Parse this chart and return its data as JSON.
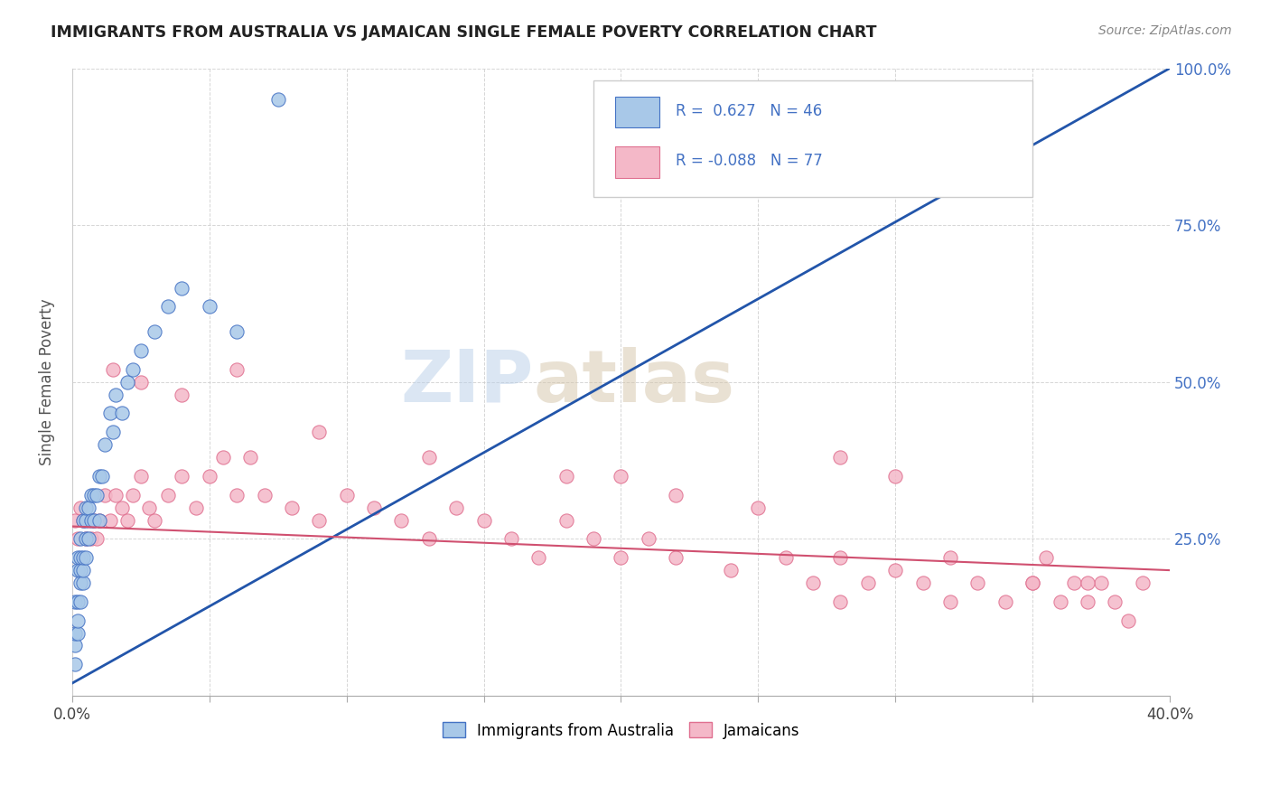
{
  "title": "IMMIGRANTS FROM AUSTRALIA VS JAMAICAN SINGLE FEMALE POVERTY CORRELATION CHART",
  "source": "Source: ZipAtlas.com",
  "ylabel": "Single Female Poverty",
  "xlim": [
    0.0,
    0.4
  ],
  "ylim": [
    0.0,
    1.0
  ],
  "blue_R": 0.627,
  "blue_N": 46,
  "pink_R": -0.088,
  "pink_N": 77,
  "blue_color": "#a8c8e8",
  "pink_color": "#f4b8c8",
  "blue_edge_color": "#4472c4",
  "pink_edge_color": "#e07090",
  "blue_line_color": "#2255aa",
  "pink_line_color": "#d05070",
  "background_color": "#ffffff",
  "grid_color": "#cccccc",
  "legend_label1": "Immigrants from Australia",
  "legend_label2": "Jamaicans",
  "blue_x": [
    0.001,
    0.001,
    0.001,
    0.001,
    0.002,
    0.002,
    0.002,
    0.002,
    0.002,
    0.003,
    0.003,
    0.003,
    0.003,
    0.003,
    0.004,
    0.004,
    0.004,
    0.004,
    0.005,
    0.005,
    0.005,
    0.005,
    0.006,
    0.006,
    0.007,
    0.007,
    0.008,
    0.008,
    0.009,
    0.01,
    0.01,
    0.011,
    0.012,
    0.014,
    0.015,
    0.016,
    0.018,
    0.02,
    0.022,
    0.025,
    0.03,
    0.035,
    0.04,
    0.05,
    0.06,
    0.075
  ],
  "blue_y": [
    0.05,
    0.08,
    0.1,
    0.15,
    0.1,
    0.12,
    0.15,
    0.2,
    0.22,
    0.15,
    0.18,
    0.2,
    0.22,
    0.25,
    0.18,
    0.2,
    0.22,
    0.28,
    0.22,
    0.25,
    0.28,
    0.3,
    0.25,
    0.3,
    0.28,
    0.32,
    0.28,
    0.32,
    0.32,
    0.28,
    0.35,
    0.35,
    0.4,
    0.45,
    0.42,
    0.48,
    0.45,
    0.5,
    0.52,
    0.55,
    0.58,
    0.62,
    0.65,
    0.62,
    0.58,
    0.95
  ],
  "blue_line_x": [
    0.0,
    0.4
  ],
  "blue_line_y_from": 0.02,
  "blue_line_y_to": 1.0,
  "pink_line_x": [
    0.0,
    0.4
  ],
  "pink_line_y_from": 0.27,
  "pink_line_y_to": 0.2,
  "pink_x": [
    0.001,
    0.002,
    0.003,
    0.004,
    0.005,
    0.006,
    0.007,
    0.008,
    0.009,
    0.01,
    0.012,
    0.014,
    0.016,
    0.018,
    0.02,
    0.022,
    0.025,
    0.028,
    0.03,
    0.035,
    0.04,
    0.045,
    0.05,
    0.055,
    0.06,
    0.065,
    0.07,
    0.08,
    0.09,
    0.1,
    0.11,
    0.12,
    0.13,
    0.14,
    0.15,
    0.16,
    0.17,
    0.18,
    0.19,
    0.2,
    0.21,
    0.22,
    0.24,
    0.26,
    0.27,
    0.28,
    0.29,
    0.3,
    0.31,
    0.32,
    0.33,
    0.34,
    0.35,
    0.355,
    0.36,
    0.365,
    0.37,
    0.375,
    0.38,
    0.385,
    0.39,
    0.015,
    0.025,
    0.04,
    0.06,
    0.09,
    0.13,
    0.18,
    0.22,
    0.28,
    0.2,
    0.25,
    0.3,
    0.35,
    0.28,
    0.32,
    0.37
  ],
  "pink_y": [
    0.28,
    0.25,
    0.3,
    0.28,
    0.25,
    0.28,
    0.25,
    0.28,
    0.25,
    0.28,
    0.32,
    0.28,
    0.32,
    0.3,
    0.28,
    0.32,
    0.35,
    0.3,
    0.28,
    0.32,
    0.35,
    0.3,
    0.35,
    0.38,
    0.32,
    0.38,
    0.32,
    0.3,
    0.28,
    0.32,
    0.3,
    0.28,
    0.25,
    0.3,
    0.28,
    0.25,
    0.22,
    0.28,
    0.25,
    0.22,
    0.25,
    0.22,
    0.2,
    0.22,
    0.18,
    0.22,
    0.18,
    0.2,
    0.18,
    0.22,
    0.18,
    0.15,
    0.18,
    0.22,
    0.15,
    0.18,
    0.15,
    0.18,
    0.15,
    0.12,
    0.18,
    0.52,
    0.5,
    0.48,
    0.52,
    0.42,
    0.38,
    0.35,
    0.32,
    0.38,
    0.35,
    0.3,
    0.35,
    0.18,
    0.15,
    0.15,
    0.18
  ]
}
